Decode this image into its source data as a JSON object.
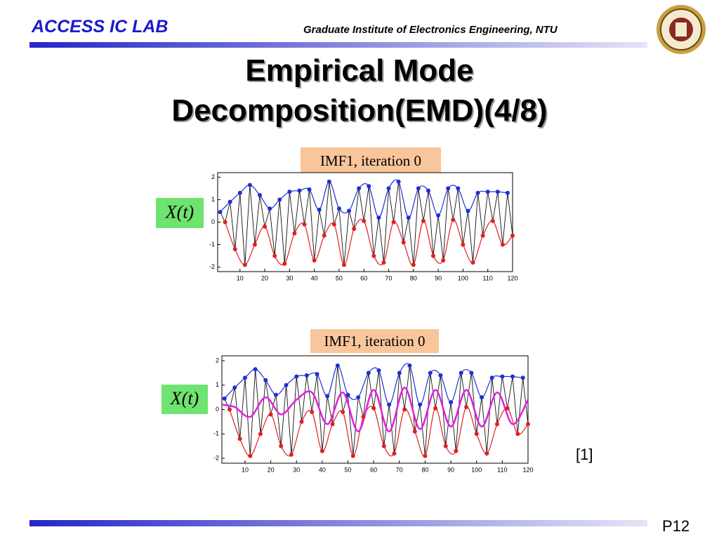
{
  "header": {
    "lab": "ACCESS IC LAB",
    "institute": "Graduate Institute of Electronics Engineering, NTU"
  },
  "title": [
    "Empirical Mode",
    "Decomposition(EMD)(4/8)"
  ],
  "figures": [
    {
      "caption": "IMF1, iteration 0",
      "ylabel": "X(t)",
      "xlim": [
        1,
        120
      ],
      "ylim": [
        -2.2,
        2.2
      ],
      "xticks": [
        10,
        20,
        30,
        40,
        50,
        60,
        70,
        80,
        90,
        100,
        110,
        120
      ],
      "yticks": [
        -2,
        -1,
        0,
        1,
        2
      ],
      "maxima": {
        "color": "#1c2fd8",
        "x": [
          2,
          6,
          10,
          14,
          18,
          22,
          26,
          30,
          34,
          38,
          42,
          46,
          50,
          54,
          58,
          62,
          66,
          70,
          74,
          78,
          82,
          86,
          90,
          94,
          98,
          102,
          106,
          110,
          114,
          118
        ],
        "y": [
          0.45,
          0.9,
          1.3,
          1.65,
          1.2,
          0.6,
          1.0,
          1.35,
          1.4,
          1.45,
          0.55,
          1.8,
          0.6,
          0.5,
          1.5,
          1.6,
          0.2,
          1.5,
          1.8,
          0.2,
          1.5,
          1.4,
          0.3,
          1.5,
          1.5,
          0.5,
          1.3,
          1.35,
          1.35,
          1.3
        ]
      },
      "minima": {
        "color": "#e02020",
        "x": [
          4,
          8,
          12,
          16,
          20,
          24,
          28,
          32,
          36,
          40,
          44,
          48,
          52,
          56,
          60,
          64,
          68,
          72,
          76,
          80,
          84,
          88,
          92,
          96,
          100,
          104,
          108,
          112,
          116,
          120
        ],
        "y": [
          0,
          -1.2,
          -1.9,
          -1.0,
          -0.2,
          -1.5,
          -1.85,
          -0.5,
          -0.1,
          -1.7,
          -0.6,
          -0.1,
          -1.9,
          -0.3,
          0.05,
          -1.5,
          -1.8,
          0,
          -0.9,
          -1.9,
          0.05,
          -1.5,
          -1.7,
          0.1,
          -1.0,
          -1.8,
          -0.6,
          0.05,
          -1.0,
          -0.6
        ]
      }
    },
    {
      "caption": "IMF1, iteration 0",
      "ylabel": "X(t)",
      "xlim": [
        1,
        120
      ],
      "ylim": [
        -2.2,
        2.2
      ],
      "xticks": [
        10,
        20,
        30,
        40,
        50,
        60,
        70,
        80,
        90,
        100,
        110,
        120
      ],
      "yticks": [
        -2,
        -1,
        0,
        1,
        2
      ],
      "maxima": {
        "color": "#1c2fd8",
        "x": [
          2,
          6,
          10,
          14,
          18,
          22,
          26,
          30,
          34,
          38,
          42,
          46,
          50,
          54,
          58,
          62,
          66,
          70,
          74,
          78,
          82,
          86,
          90,
          94,
          98,
          102,
          106,
          110,
          114,
          118
        ],
        "y": [
          0.45,
          0.9,
          1.3,
          1.65,
          1.2,
          0.6,
          1.0,
          1.35,
          1.4,
          1.45,
          0.55,
          1.8,
          0.6,
          0.5,
          1.5,
          1.6,
          0.2,
          1.5,
          1.8,
          0.2,
          1.5,
          1.4,
          0.3,
          1.5,
          1.5,
          0.5,
          1.3,
          1.35,
          1.35,
          1.3
        ]
      },
      "minima": {
        "color": "#e02020",
        "x": [
          4,
          8,
          12,
          16,
          20,
          24,
          28,
          32,
          36,
          40,
          44,
          48,
          52,
          56,
          60,
          64,
          68,
          72,
          76,
          80,
          84,
          88,
          92,
          96,
          100,
          104,
          108,
          112,
          116,
          120
        ],
        "y": [
          0,
          -1.2,
          -1.9,
          -1.0,
          -0.2,
          -1.5,
          -1.85,
          -0.5,
          -0.1,
          -1.7,
          -0.6,
          -0.1,
          -1.9,
          -0.3,
          0.05,
          -1.5,
          -1.8,
          0,
          -0.9,
          -1.9,
          0.05,
          -1.5,
          -1.7,
          0.1,
          -1.0,
          -1.8,
          -0.6,
          0.05,
          -1.0,
          -0.6
        ]
      },
      "mean": {
        "color": "#e020e0",
        "x": [
          1,
          6,
          12,
          18,
          24,
          30,
          36,
          42,
          48,
          54,
          60,
          66,
          72,
          78,
          84,
          90,
          96,
          102,
          108,
          114,
          120
        ],
        "y": [
          0.2,
          0.1,
          -0.3,
          0.5,
          -0.2,
          0.4,
          0.7,
          -0.6,
          0.7,
          -0.9,
          0.8,
          -0.9,
          0.9,
          -0.8,
          0.8,
          -0.7,
          0.8,
          -0.7,
          0.7,
          -0.6,
          0.4
        ]
      }
    }
  ],
  "citation": "[1]",
  "page": "P12"
}
